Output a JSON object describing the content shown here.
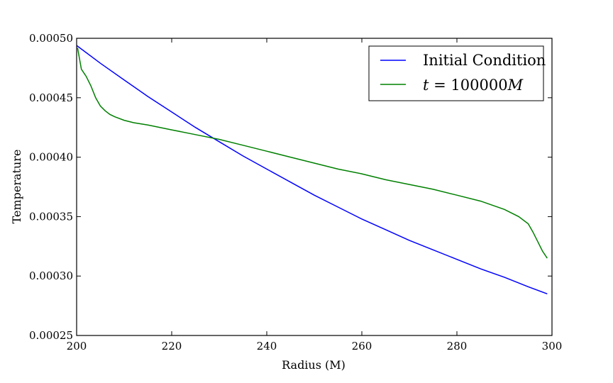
{
  "chart_data": {
    "type": "line",
    "title": "",
    "xlabel": "Radius (M)",
    "ylabel": "Temperature",
    "xlim": [
      200,
      300
    ],
    "ylim": [
      0.00025,
      0.0005
    ],
    "x_ticks": [
      200,
      220,
      240,
      260,
      280,
      300
    ],
    "x_tick_labels": [
      "200",
      "220",
      "240",
      "260",
      "280",
      "300"
    ],
    "y_ticks": [
      0.00025,
      0.0003,
      0.00035,
      0.0004,
      0.00045,
      0.0005
    ],
    "y_tick_labels": [
      "0.00025",
      "0.00030",
      "0.00035",
      "0.00040",
      "0.00045",
      "0.00050"
    ],
    "grid": false,
    "legend_position": "top-right",
    "series": [
      {
        "name": "Initial Condition",
        "color": "#0000ff",
        "x": [
          200,
          205,
          210,
          215,
          220,
          225,
          230,
          235,
          240,
          245,
          250,
          255,
          260,
          265,
          270,
          275,
          280,
          285,
          290,
          295,
          299
        ],
        "y": [
          0.000494,
          0.000479,
          0.000465,
          0.000451,
          0.000438,
          0.000425,
          0.000413,
          0.000401,
          0.00039,
          0.000379,
          0.000368,
          0.000358,
          0.000348,
          0.000339,
          0.00033,
          0.000322,
          0.000314,
          0.000306,
          0.000299,
          0.000291,
          0.000285
        ]
      },
      {
        "name_prefix": "t",
        "name_operator": " = ",
        "name_value": "100000",
        "name_unit": "M",
        "color": "#008000",
        "x": [
          200.2,
          201,
          202,
          203,
          204,
          205,
          206,
          207,
          208,
          210,
          212,
          215,
          220,
          225,
          230,
          235,
          240,
          245,
          250,
          255,
          260,
          265,
          270,
          275,
          280,
          285,
          290,
          293,
          295,
          296,
          297,
          298,
          299
        ],
        "y": [
          0.000492,
          0.000474,
          0.000468,
          0.00046,
          0.00045,
          0.000443,
          0.000439,
          0.000436,
          0.000434,
          0.000431,
          0.000429,
          0.000427,
          0.000423,
          0.000419,
          0.000415,
          0.00041,
          0.000405,
          0.0004,
          0.000395,
          0.00039,
          0.000386,
          0.000381,
          0.000377,
          0.000373,
          0.000368,
          0.000363,
          0.000356,
          0.00035,
          0.000344,
          0.000337,
          0.000329,
          0.000321,
          0.000315
        ]
      }
    ]
  }
}
